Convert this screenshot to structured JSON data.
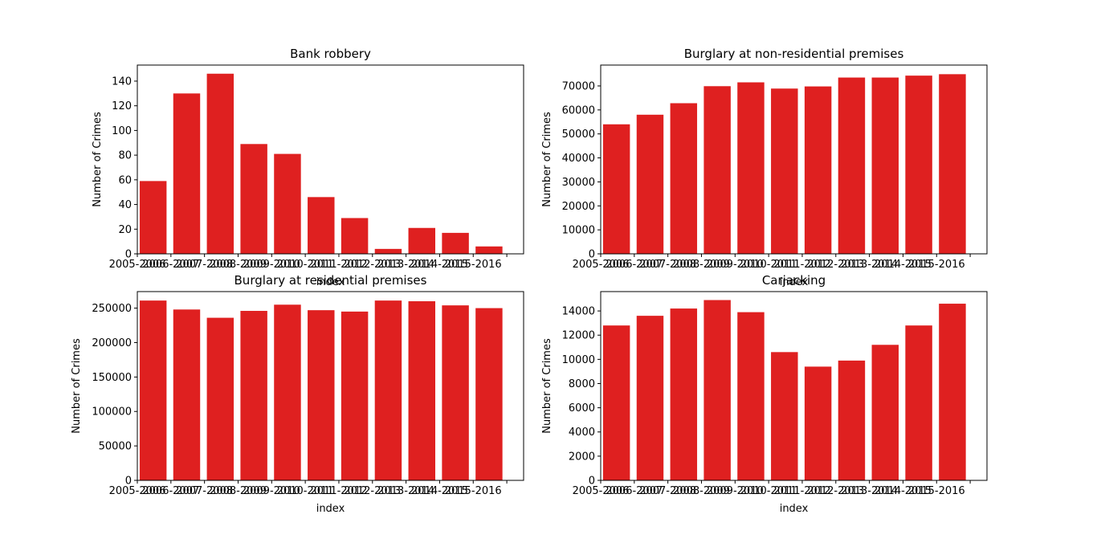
{
  "style": {
    "bar_color": "#df2020",
    "background": "#ffffff",
    "axis_color": "#000000"
  },
  "chart_data": [
    {
      "type": "bar",
      "title": "Bank robbery",
      "xlabel": "index",
      "ylabel": "Number of Crimes",
      "categories": [
        "2005-2006",
        "2006-2007",
        "2007-2008",
        "2008-2009",
        "2009-2010",
        "2010-2011",
        "2011-2012",
        "2012-2013",
        "2013-2014",
        "2014-2015",
        "2015-2016"
      ],
      "values": [
        59,
        130,
        146,
        89,
        81,
        46,
        29,
        4,
        21,
        17,
        6
      ],
      "ylim": [
        0,
        153
      ],
      "yticks": [
        0,
        20,
        40,
        60,
        80,
        100,
        120,
        140
      ]
    },
    {
      "type": "bar",
      "title": "Burglary at non-residential premises",
      "xlabel": "index",
      "ylabel": "Number of Crimes",
      "categories": [
        "2005-2006",
        "2006-2007",
        "2007-2008",
        "2008-2009",
        "2009-2010",
        "2010-2011",
        "2011-2012",
        "2012-2013",
        "2013-2014",
        "2014-2015",
        "2015-2016"
      ],
      "values": [
        54000,
        58000,
        62800,
        69900,
        71500,
        68900,
        69800,
        73500,
        73500,
        74300,
        74900
      ],
      "ylim": [
        0,
        78700
      ],
      "yticks": [
        0,
        10000,
        20000,
        30000,
        40000,
        50000,
        60000,
        70000
      ]
    },
    {
      "type": "bar",
      "title": "Burglary at residential premises",
      "xlabel": "index",
      "ylabel": "Number of Crimes",
      "categories": [
        "2005-2006",
        "2006-2007",
        "2007-2008",
        "2008-2009",
        "2009-2010",
        "2010-2011",
        "2011-2012",
        "2012-2013",
        "2013-2014",
        "2014-2015",
        "2015-2016"
      ],
      "values": [
        261000,
        248000,
        236000,
        246000,
        255000,
        247000,
        245000,
        261000,
        260000,
        254000,
        250000
      ],
      "ylim": [
        0,
        274000
      ],
      "yticks": [
        0,
        50000,
        100000,
        150000,
        200000,
        250000
      ]
    },
    {
      "type": "bar",
      "title": "Carjacking",
      "xlabel": "index",
      "ylabel": "Number of Crimes",
      "categories": [
        "2005-2006",
        "2006-2007",
        "2007-2008",
        "2008-2009",
        "2009-2010",
        "2010-2011",
        "2011-2012",
        "2012-2013",
        "2013-2014",
        "2014-2015",
        "2015-2016"
      ],
      "values": [
        12800,
        13600,
        14200,
        14900,
        13900,
        10600,
        9400,
        9900,
        11200,
        12800,
        14600
      ],
      "ylim": [
        0,
        15600
      ],
      "yticks": [
        0,
        2000,
        4000,
        6000,
        8000,
        10000,
        12000,
        14000
      ]
    }
  ]
}
